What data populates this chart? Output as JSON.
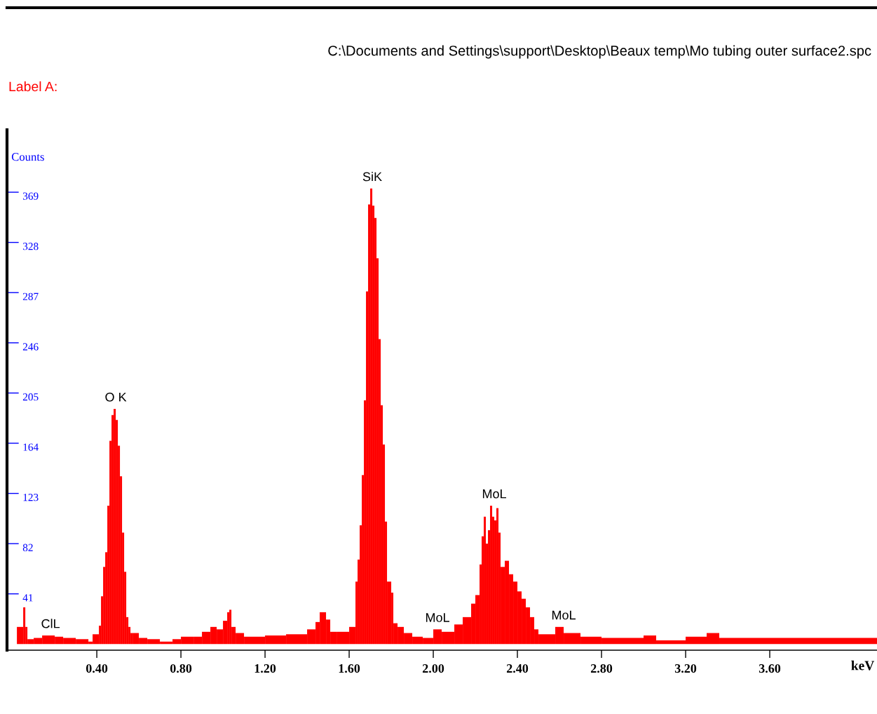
{
  "chart_data": {
    "type": "histogram",
    "title": "C:\\Documents and Settings\\support\\Desktop\\Beaux temp\\Mo tubing outer surface2.spc",
    "subtitle": "Label A:",
    "xlabel": "keV",
    "ylabel": "Counts",
    "color": "#ff0000",
    "bins": [
      0.02,
      0.05,
      0.06,
      0.07,
      0.1,
      0.14,
      0.2,
      0.24,
      0.3,
      0.36,
      0.38,
      0.41,
      0.42,
      0.43,
      0.44,
      0.45,
      0.46,
      0.47,
      0.48,
      0.49,
      0.5,
      0.51,
      0.52,
      0.53,
      0.54,
      0.55,
      0.56,
      0.57,
      0.6,
      0.64,
      0.7,
      0.76,
      0.8,
      0.86,
      0.9,
      0.94,
      0.97,
      1.0,
      1.02,
      1.03,
      1.04,
      1.06,
      1.1,
      1.2,
      1.3,
      1.4,
      1.44,
      1.46,
      1.49,
      1.51,
      1.54,
      1.6,
      1.63,
      1.64,
      1.65,
      1.66,
      1.67,
      1.68,
      1.69,
      1.7,
      1.71,
      1.72,
      1.73,
      1.74,
      1.75,
      1.76,
      1.77,
      1.78,
      1.8,
      1.81,
      1.83,
      1.86,
      1.9,
      1.95,
      2.0,
      2.04,
      2.1,
      2.14,
      2.18,
      2.2,
      2.22,
      2.23,
      2.24,
      2.25,
      2.26,
      2.27,
      2.28,
      2.29,
      2.3,
      2.31,
      2.32,
      2.34,
      2.36,
      2.38,
      2.4,
      2.42,
      2.44,
      2.46,
      2.48,
      2.5,
      2.58,
      2.62,
      2.7,
      2.8,
      3.0,
      3.06,
      3.2,
      3.3,
      3.36,
      4.11
    ],
    "values": [
      14,
      30,
      14,
      4,
      5,
      7,
      6,
      5,
      4,
      2,
      8,
      15,
      39,
      63,
      75,
      113,
      166,
      187,
      192,
      183,
      162,
      137,
      91,
      59,
      22,
      14,
      9,
      9,
      5,
      4,
      2,
      4,
      6,
      6,
      10,
      14,
      12,
      19,
      26,
      28,
      14,
      9,
      6,
      7,
      8,
      12,
      18,
      26,
      20,
      10,
      10,
      14,
      51,
      69,
      97,
      138,
      199,
      288,
      359,
      372,
      358,
      348,
      315,
      249,
      195,
      163,
      100,
      51,
      42,
      17,
      14,
      9,
      6,
      5,
      12,
      10,
      16,
      22,
      33,
      40,
      65,
      88,
      104,
      82,
      93,
      113,
      104,
      101,
      111,
      91,
      63,
      68,
      57,
      51,
      43,
      37,
      30,
      22,
      12,
      8,
      14,
      9,
      6,
      5,
      7,
      3,
      6,
      9,
      5
    ],
    "xlim": [
      -0.027,
      4.11
    ],
    "xticks": [
      {
        "value": 0.4,
        "label": "0.40"
      },
      {
        "value": 0.8,
        "label": "0.80"
      },
      {
        "value": 1.2,
        "label": "1.20"
      },
      {
        "value": 1.6,
        "label": "1.60"
      },
      {
        "value": 2.0,
        "label": "2.00"
      },
      {
        "value": 2.4,
        "label": "2.40"
      },
      {
        "value": 2.8,
        "label": "2.80"
      },
      {
        "value": 3.2,
        "label": "3.20"
      },
      {
        "value": 3.6,
        "label": "3.60"
      }
    ],
    "ylim": [
      -5,
      420
    ],
    "yticks": [
      41,
      82,
      123,
      164,
      205,
      246,
      287,
      328,
      369
    ],
    "annotations": [
      {
        "text": "ClL",
        "x": 0.18,
        "y": 7
      },
      {
        "text": "O K",
        "x": 0.49,
        "y": 192
      },
      {
        "text": "SiK",
        "x": 1.71,
        "y": 372
      },
      {
        "text": "MoL",
        "x": 2.02,
        "y": 12
      },
      {
        "text": "MoL",
        "x": 2.29,
        "y": 113
      },
      {
        "text": "MoL",
        "x": 2.62,
        "y": 14
      }
    ],
    "grid": false,
    "legend": false
  }
}
